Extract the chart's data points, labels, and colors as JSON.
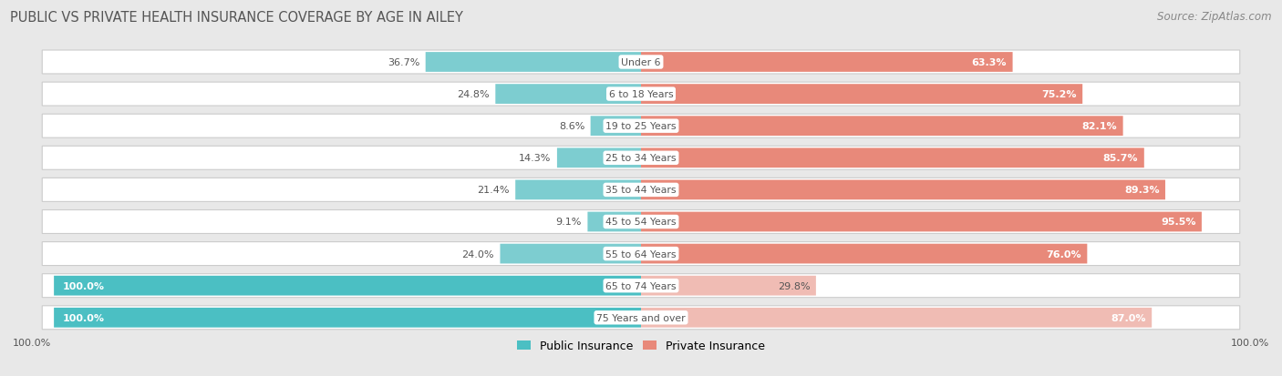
{
  "title": "PUBLIC VS PRIVATE HEALTH INSURANCE COVERAGE BY AGE IN AILEY",
  "source": "Source: ZipAtlas.com",
  "categories": [
    "Under 6",
    "6 to 18 Years",
    "19 to 25 Years",
    "25 to 34 Years",
    "35 to 44 Years",
    "45 to 54 Years",
    "55 to 64 Years",
    "65 to 74 Years",
    "75 Years and over"
  ],
  "public_values": [
    36.7,
    24.8,
    8.6,
    14.3,
    21.4,
    9.1,
    24.0,
    100.0,
    100.0
  ],
  "private_values": [
    63.3,
    75.2,
    82.1,
    85.7,
    89.3,
    95.5,
    76.0,
    29.8,
    87.0
  ],
  "public_color_normal": "#7dcdd0",
  "public_color_full": "#4bbfc3",
  "private_color_normal": "#e8897a",
  "private_color_light": "#f0bcb4",
  "bg_color": "#e8e8e8",
  "bar_bg": "#ffffff",
  "bar_border": "#cccccc",
  "title_color": "#555555",
  "text_dark": "#555555",
  "text_white": "#ffffff",
  "max_val": 100.0
}
